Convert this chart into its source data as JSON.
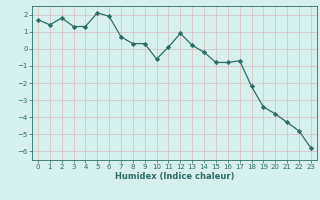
{
  "x": [
    0,
    1,
    2,
    3,
    4,
    5,
    6,
    7,
    8,
    9,
    10,
    11,
    12,
    13,
    14,
    15,
    16,
    17,
    18,
    19,
    20,
    21,
    22,
    23
  ],
  "y": [
    1.7,
    1.4,
    1.8,
    1.3,
    1.3,
    2.1,
    1.9,
    0.7,
    0.3,
    0.3,
    -0.6,
    0.1,
    0.9,
    0.2,
    -0.2,
    -0.8,
    -0.8,
    -0.7,
    -2.2,
    -3.4,
    -3.8,
    -4.3,
    -4.8,
    -5.8
  ],
  "ylim": [
    -6.5,
    2.5
  ],
  "yticks": [
    -6,
    -5,
    -4,
    -3,
    -2,
    -1,
    0,
    1,
    2
  ],
  "xticks": [
    0,
    1,
    2,
    3,
    4,
    5,
    6,
    7,
    8,
    9,
    10,
    11,
    12,
    13,
    14,
    15,
    16,
    17,
    18,
    19,
    20,
    21,
    22,
    23
  ],
  "xlabel": "Humidex (Indice chaleur)",
  "line_color": "#2d6e68",
  "marker": "D",
  "marker_size": 2.2,
  "bg_color": "#d6f0ed",
  "grid_color": "#c0deda",
  "grid_color_minor": "#e8f7f5",
  "spine_color": "#2d6e68"
}
